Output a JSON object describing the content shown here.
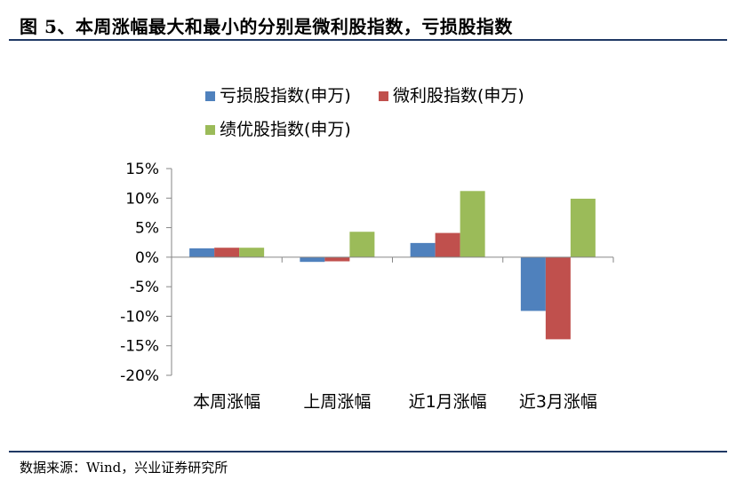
{
  "figure_title": "图 5、本周涨幅最大和最小的分别是微利股指数，亏损股指数",
  "source": "数据来源：Wind，兴业证券研究所",
  "chart_data": {
    "type": "bar",
    "categories": [
      "本周涨幅",
      "上周涨幅",
      "近1月涨幅",
      "近3月涨幅"
    ],
    "series": [
      {
        "name": "亏损股指数(申万)",
        "color": "#4f81bd",
        "values": [
          1.5,
          -0.8,
          2.4,
          -9.1
        ]
      },
      {
        "name": "微利股指数(申万)",
        "color": "#c0504d",
        "values": [
          1.6,
          -0.7,
          4.1,
          -13.9
        ]
      },
      {
        "name": "绩优股指数(申万)",
        "color": "#9bbb59",
        "values": [
          1.6,
          4.3,
          11.2,
          9.9
        ]
      }
    ],
    "ylim": [
      -20,
      15
    ],
    "yticks": [
      15,
      10,
      5,
      0,
      -5,
      -10,
      -15,
      -20
    ],
    "ytick_labels": [
      "15%",
      "10%",
      "5%",
      "0%",
      "-5%",
      "-10%",
      "-15%",
      "-20%"
    ],
    "legend_position": "top",
    "grid": false
  }
}
